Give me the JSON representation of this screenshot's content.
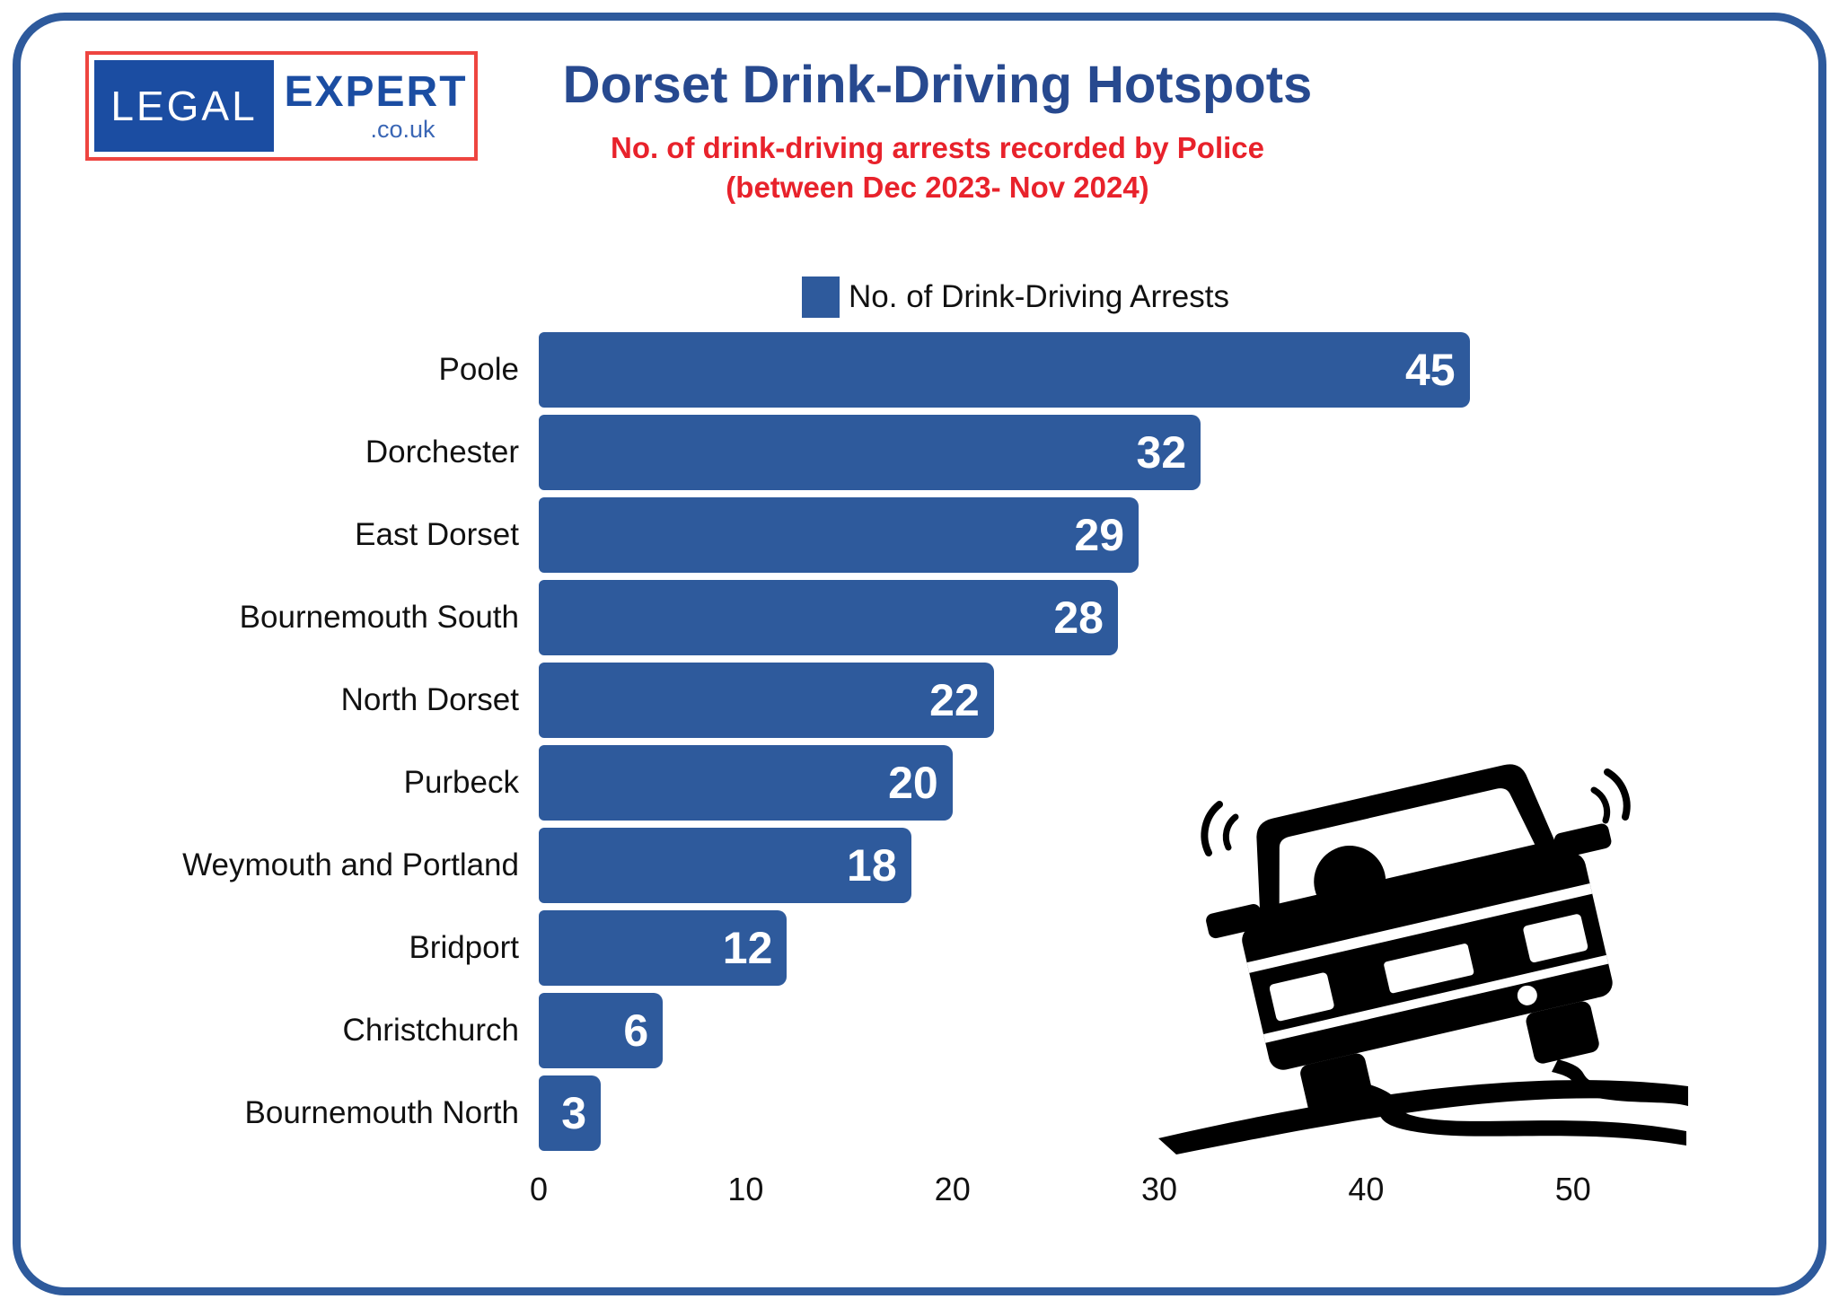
{
  "page": {
    "background": "#FFFFFF",
    "border_color": "#2E5A9C"
  },
  "logo": {
    "legal_text": "LEGAL",
    "expert_text": "EXPERT",
    "couk_text": ".co.uk",
    "legal_box_color": "#1B4DA2",
    "expert_text_color": "#1B4DA2",
    "border_color": "#EE4540"
  },
  "header": {
    "title": "Dorset Drink-Driving Hotspots",
    "subtitle_line1": "No. of drink-driving arrests recorded by Police",
    "subtitle_line2": "(between Dec 2023- Nov 2024)",
    "title_color": "#27498F",
    "subtitle_color": "#E8222B"
  },
  "legend": {
    "label": "No. of Drink-Driving Arrests",
    "swatch_color": "#2E5A9C",
    "position": "top-center"
  },
  "chart_data": {
    "type": "bar",
    "orientation": "horizontal",
    "title": "Dorset Drink-Driving Hotspots",
    "subtitle": "No. of drink-driving arrests recorded by Police (between Dec 2023- Nov 2024)",
    "series_name": "No. of Drink-Driving Arrests",
    "categories": [
      "Poole",
      "Dorchester",
      "East Dorset",
      "Bournemouth South",
      "North Dorset",
      "Purbeck",
      "Weymouth and Portland",
      "Bridport",
      "Christchurch",
      "Bournemouth North"
    ],
    "values": [
      45,
      32,
      29,
      28,
      22,
      20,
      18,
      12,
      6,
      3
    ],
    "xlabel": "",
    "ylabel": "",
    "xlim": [
      0,
      56
    ],
    "x_ticks": [
      0,
      10,
      20,
      30,
      40,
      50
    ],
    "grid": false,
    "bar_color": "#2E5A9C",
    "value_label_color": "#FFFFFF",
    "value_labels_shown": true
  },
  "illustration": {
    "name": "car skidding with tyre marks",
    "color": "#000000"
  }
}
